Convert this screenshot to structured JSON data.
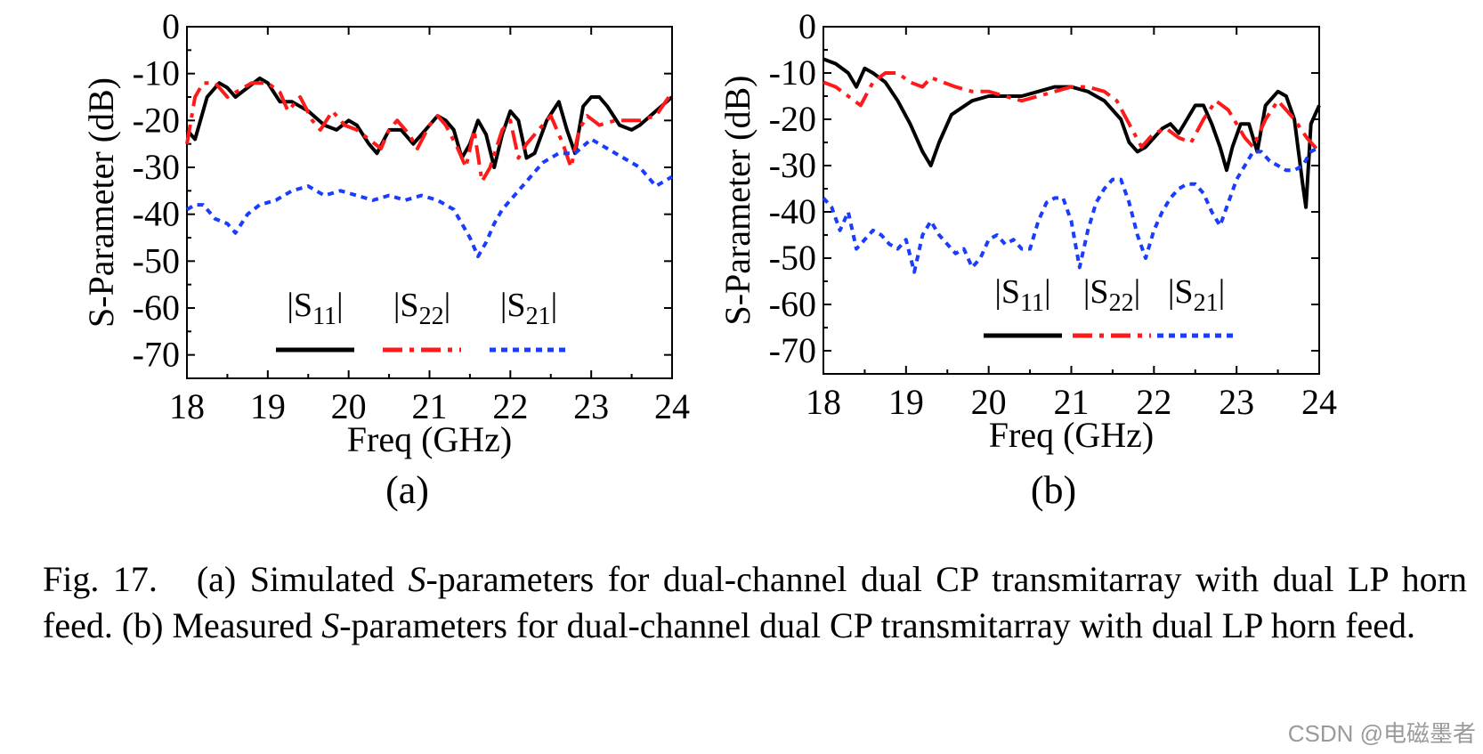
{
  "caption": {
    "figure_label": "Fig. 17.",
    "segments": [
      {
        "text": "(a) Simulated ",
        "italic": false
      },
      {
        "text": "S",
        "italic": true
      },
      {
        "text": "-parameters for dual-channel dual CP transmitarray with dual LP horn feed. (b) Measured ",
        "italic": false
      },
      {
        "text": "S",
        "italic": true
      },
      {
        "text": "-parameters for dual-channel dual CP transmitarray with dual LP horn feed.",
        "italic": false
      }
    ]
  },
  "watermark": "CSDN @电磁墨者",
  "colors": {
    "s11": "#000000",
    "s22": "#ff1a1a",
    "s21": "#1a3cff"
  },
  "chart_data": [
    {
      "type": "line",
      "panel_label": "(a)",
      "xlabel": "Freq (GHz)",
      "ylabel": "S-Parameter (dB)",
      "xlim": [
        18,
        24
      ],
      "ylim": [
        -75,
        0
      ],
      "xticks": [
        18,
        19,
        20,
        21,
        22,
        23,
        24
      ],
      "yticks": [
        0,
        -10,
        -20,
        -30,
        -40,
        -50,
        -60,
        -70
      ],
      "legend_position": "bottom-center",
      "series": [
        {
          "name": "|S11|",
          "key": "s11",
          "style": "solid",
          "x": [
            18.0,
            18.1,
            18.25,
            18.4,
            18.5,
            18.6,
            18.75,
            18.9,
            19.0,
            19.15,
            19.3,
            19.5,
            19.7,
            19.85,
            20.0,
            20.1,
            20.25,
            20.35,
            20.5,
            20.65,
            20.8,
            20.95,
            21.1,
            21.2,
            21.3,
            21.4,
            21.5,
            21.6,
            21.7,
            21.8,
            21.9,
            22.0,
            22.1,
            22.2,
            22.3,
            22.45,
            22.6,
            22.7,
            22.8,
            22.9,
            23.0,
            23.1,
            23.2,
            23.35,
            23.5,
            23.6,
            23.8,
            24.0
          ],
          "y": [
            -22,
            -24,
            -15,
            -12,
            -13,
            -15,
            -13,
            -11,
            -12,
            -16,
            -16,
            -18,
            -21,
            -22,
            -20,
            -21,
            -25,
            -27,
            -22,
            -22,
            -25,
            -22,
            -19,
            -20,
            -22,
            -28,
            -25,
            -20,
            -23,
            -30,
            -23,
            -18,
            -20,
            -28,
            -27,
            -20,
            -16,
            -22,
            -27,
            -17,
            -15,
            -15,
            -17,
            -21,
            -22,
            -21,
            -18,
            -15
          ]
        },
        {
          "name": "|S22|",
          "key": "s22",
          "style": "dashdot",
          "x": [
            18.0,
            18.1,
            18.2,
            18.35,
            18.5,
            18.6,
            18.8,
            18.9,
            19.0,
            19.15,
            19.25,
            19.4,
            19.55,
            19.65,
            19.8,
            19.95,
            20.1,
            20.25,
            20.4,
            20.5,
            20.6,
            20.75,
            20.85,
            21.0,
            21.1,
            21.2,
            21.35,
            21.45,
            21.55,
            21.65,
            21.75,
            21.9,
            22.0,
            22.1,
            22.2,
            22.35,
            22.5,
            22.65,
            22.75,
            22.85,
            22.95,
            23.1,
            23.3,
            23.6,
            23.8,
            24.0
          ],
          "y": [
            -25,
            -15,
            -12,
            -12,
            -15,
            -14,
            -12,
            -12,
            -12,
            -14,
            -18,
            -15,
            -20,
            -22,
            -18,
            -21,
            -22,
            -24,
            -26,
            -22,
            -20,
            -23,
            -26,
            -21,
            -19,
            -21,
            -26,
            -30,
            -22,
            -33,
            -30,
            -22,
            -20,
            -28,
            -25,
            -22,
            -19,
            -25,
            -30,
            -22,
            -19,
            -21,
            -20,
            -20,
            -19,
            -14
          ]
        },
        {
          "name": "|S21|",
          "key": "s21",
          "style": "dotted",
          "x": [
            18.0,
            18.1,
            18.2,
            18.35,
            18.5,
            18.6,
            18.75,
            18.9,
            19.1,
            19.3,
            19.5,
            19.7,
            19.9,
            20.1,
            20.3,
            20.5,
            20.7,
            20.9,
            21.1,
            21.3,
            21.5,
            21.6,
            21.7,
            21.8,
            21.9,
            22.0,
            22.2,
            22.4,
            22.6,
            22.8,
            23.0,
            23.2,
            23.4,
            23.6,
            23.8,
            24.0
          ],
          "y": [
            -39,
            -38,
            -38,
            -41,
            -42,
            -44,
            -40,
            -38,
            -37,
            -35,
            -34,
            -36,
            -35,
            -36,
            -37,
            -36,
            -37,
            -36,
            -37,
            -39,
            -45,
            -49,
            -46,
            -42,
            -39,
            -37,
            -33,
            -29,
            -27,
            -27,
            -24,
            -26,
            -28,
            -30,
            -34,
            -32
          ]
        }
      ]
    },
    {
      "type": "line",
      "panel_label": "(b)",
      "xlabel": "Freq (GHz)",
      "ylabel": "S-Parameter (dB)",
      "xlim": [
        18,
        24
      ],
      "ylim": [
        -75,
        0
      ],
      "xticks": [
        18,
        19,
        20,
        21,
        22,
        23,
        24
      ],
      "yticks": [
        0,
        -10,
        -20,
        -30,
        -40,
        -50,
        -60,
        -70
      ],
      "legend_position": "bottom-center",
      "series": [
        {
          "name": "|S11|",
          "key": "s11",
          "style": "solid",
          "x": [
            18.0,
            18.15,
            18.3,
            18.4,
            18.5,
            18.6,
            18.75,
            18.9,
            19.05,
            19.2,
            19.3,
            19.4,
            19.55,
            19.8,
            20.0,
            20.2,
            20.4,
            20.6,
            20.8,
            21.0,
            21.2,
            21.4,
            21.6,
            21.7,
            21.8,
            21.9,
            22.0,
            22.1,
            22.2,
            22.3,
            22.4,
            22.5,
            22.6,
            22.7,
            22.8,
            22.88,
            22.95,
            23.05,
            23.15,
            23.25,
            23.35,
            23.5,
            23.6,
            23.7,
            23.8,
            23.84,
            23.9,
            24.0
          ],
          "y": [
            -7,
            -8,
            -10,
            -13,
            -9,
            -10,
            -12,
            -16,
            -21,
            -27,
            -30,
            -25,
            -19,
            -16,
            -15,
            -15,
            -15,
            -14,
            -13,
            -13,
            -14,
            -16,
            -20,
            -25,
            -27,
            -26,
            -24,
            -22,
            -21,
            -23,
            -20,
            -17,
            -17,
            -21,
            -26,
            -31,
            -26,
            -21,
            -21,
            -27,
            -17,
            -14,
            -15,
            -20,
            -34,
            -39,
            -21,
            -17
          ]
        },
        {
          "name": "|S22|",
          "key": "s22",
          "style": "dashdot",
          "x": [
            18.0,
            18.15,
            18.3,
            18.45,
            18.6,
            18.75,
            18.9,
            19.05,
            19.2,
            19.3,
            19.45,
            19.6,
            19.8,
            20.0,
            20.2,
            20.4,
            20.6,
            20.8,
            21.0,
            21.2,
            21.4,
            21.55,
            21.7,
            21.85,
            22.0,
            22.15,
            22.3,
            22.45,
            22.6,
            22.75,
            22.9,
            23.0,
            23.1,
            23.2,
            23.35,
            23.5,
            23.6,
            23.7,
            23.85,
            24.0
          ],
          "y": [
            -12,
            -13,
            -15,
            -17,
            -12,
            -10,
            -10,
            -12,
            -13,
            -11,
            -12,
            -13,
            -14,
            -14,
            -15,
            -16,
            -15,
            -14,
            -13,
            -13,
            -14,
            -16,
            -21,
            -26,
            -23,
            -22,
            -24,
            -25,
            -20,
            -16,
            -18,
            -21,
            -24,
            -26,
            -20,
            -16,
            -18,
            -20,
            -24,
            -27
          ]
        },
        {
          "name": "|S21|",
          "key": "s21",
          "style": "dotted",
          "x": [
            18.0,
            18.1,
            18.2,
            18.3,
            18.4,
            18.5,
            18.6,
            18.7,
            18.8,
            18.9,
            19.0,
            19.1,
            19.2,
            19.3,
            19.4,
            19.5,
            19.6,
            19.7,
            19.8,
            19.9,
            20.0,
            20.1,
            20.2,
            20.3,
            20.4,
            20.5,
            20.6,
            20.7,
            20.8,
            20.9,
            21.0,
            21.1,
            21.2,
            21.3,
            21.4,
            21.5,
            21.6,
            21.7,
            21.8,
            21.9,
            22.0,
            22.1,
            22.2,
            22.3,
            22.4,
            22.5,
            22.6,
            22.7,
            22.8,
            22.9,
            23.0,
            23.1,
            23.2,
            23.3,
            23.4,
            23.5,
            23.6,
            23.7,
            23.8,
            23.9,
            24.0
          ],
          "y": [
            -37,
            -39,
            -44,
            -40,
            -48,
            -46,
            -44,
            -45,
            -47,
            -48,
            -46,
            -53,
            -45,
            -42,
            -45,
            -47,
            -49,
            -48,
            -52,
            -50,
            -46,
            -45,
            -47,
            -46,
            -48,
            -48,
            -42,
            -38,
            -37,
            -37,
            -42,
            -52,
            -44,
            -38,
            -35,
            -33,
            -33,
            -38,
            -45,
            -50,
            -44,
            -40,
            -37,
            -35,
            -34,
            -34,
            -36,
            -40,
            -43,
            -38,
            -33,
            -30,
            -27,
            -27,
            -29,
            -30,
            -31,
            -31,
            -30,
            -27,
            -26
          ]
        }
      ]
    }
  ]
}
